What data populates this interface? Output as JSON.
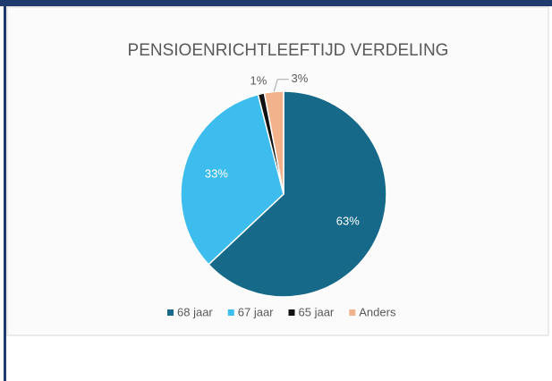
{
  "chart_data": {
    "type": "pie",
    "title": "PENSIOENRICHTLEEFTIJD VERDELING",
    "categories": [
      "68 jaar",
      "67 jaar",
      "65 jaar",
      "Anders"
    ],
    "values": [
      63,
      33,
      1,
      3
    ],
    "value_labels": [
      "63%",
      "33%",
      "1%",
      "3%"
    ],
    "colors": [
      "#17698a",
      "#3dbdee",
      "#111111",
      "#f2b38c"
    ],
    "legend": "bottom"
  }
}
